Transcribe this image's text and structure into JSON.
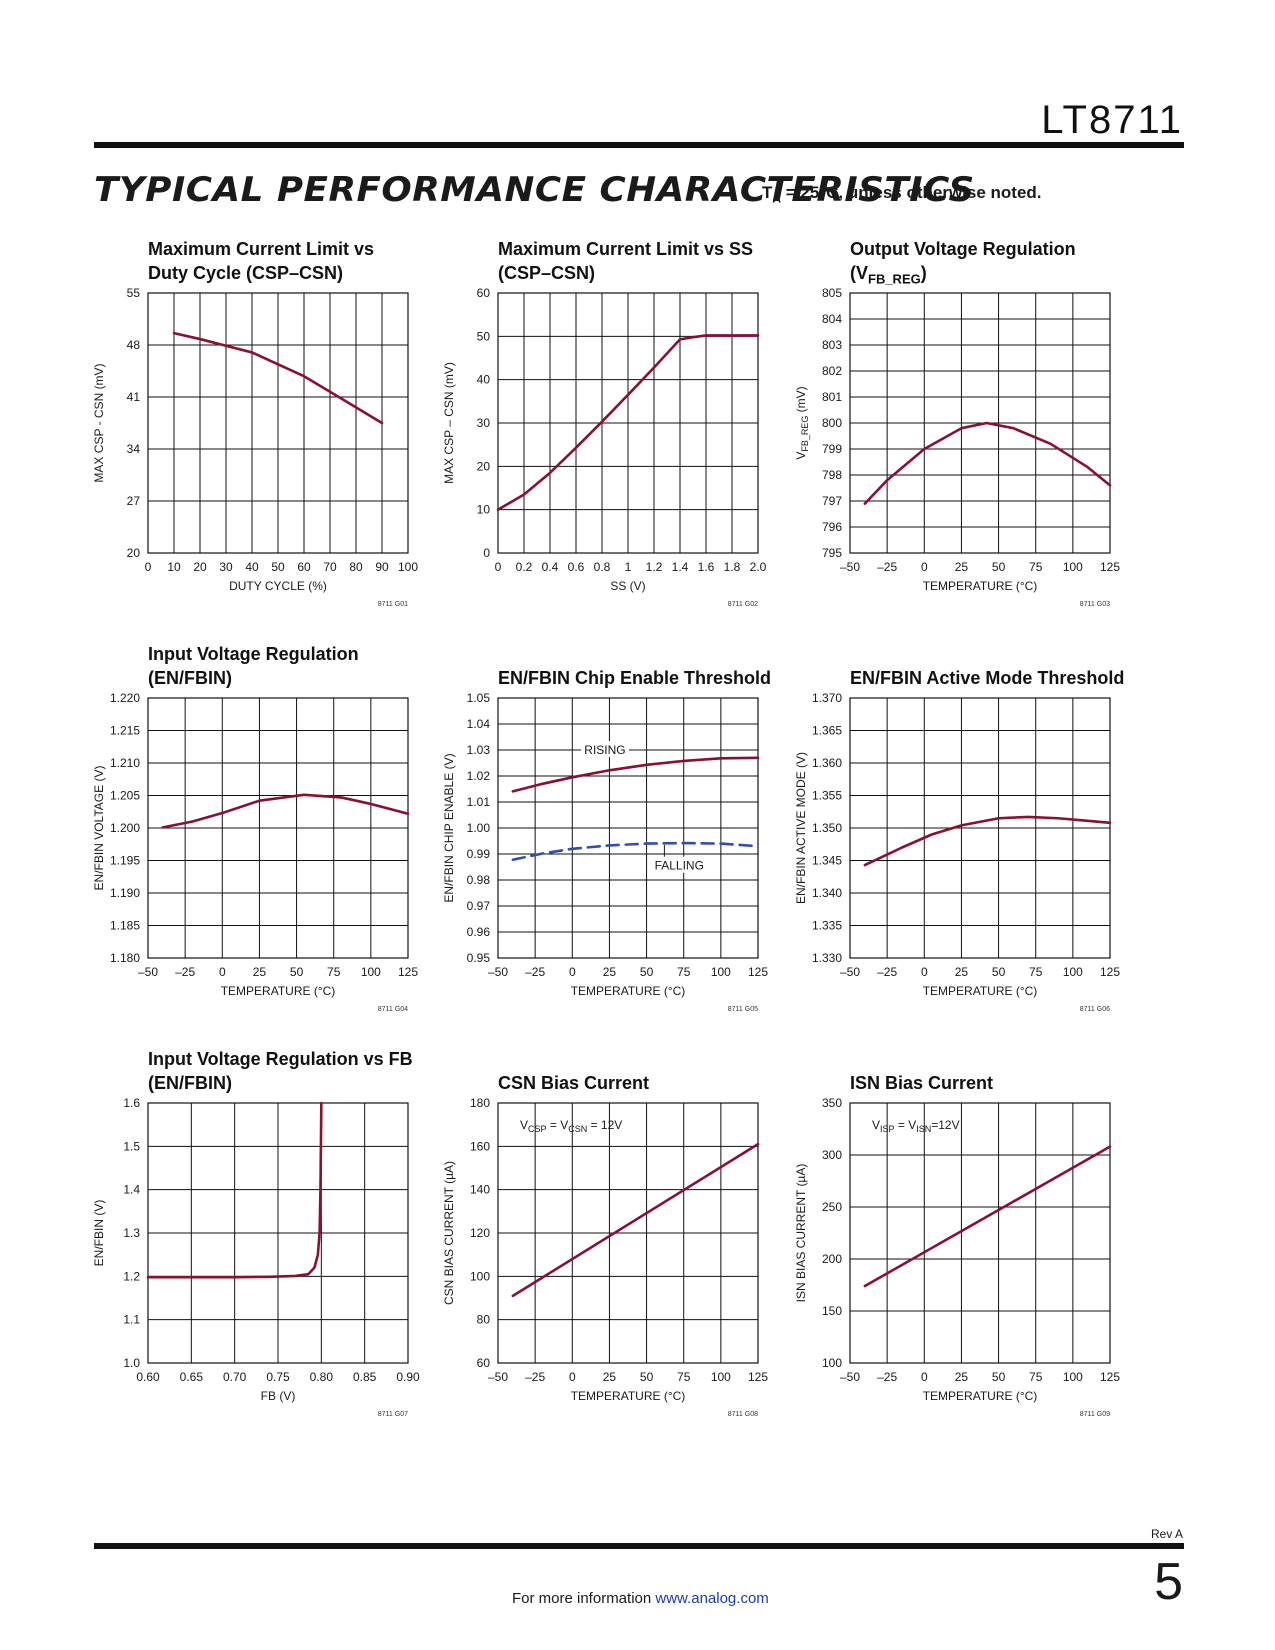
{
  "header": {
    "part_number": "LT8711",
    "section_title": "TYPICAL PERFORMANCE CHARACTERISTICS",
    "note_ta": "T",
    "note_sub": "A",
    "note_rest": " = 25°C, unless otherwise noted."
  },
  "colors": {
    "curve": "#8b1030",
    "curve_falling": "#2f4fb0",
    "grid": "#111111"
  },
  "chart_data": [
    {
      "id": "G01",
      "type": "line",
      "title_lines": [
        "Maximum Current Limit vs",
        "Duty Cycle (CSP–CSN)"
      ],
      "xlabel": "DUTY CYCLE (%)",
      "ylabel": "MAX CSP - CSN (mV)",
      "xlim": [
        0,
        100
      ],
      "ylim": [
        20,
        55
      ],
      "xticks": [
        0,
        10,
        20,
        30,
        40,
        50,
        60,
        70,
        80,
        90,
        100
      ],
      "xtick_labels": [
        "0",
        "10",
        "20",
        "30",
        "40",
        "50",
        "60",
        "70",
        "80",
        "90",
        "100"
      ],
      "yticks": [
        20,
        27,
        34,
        41,
        48,
        55
      ],
      "ytick_labels": [
        "20",
        "27",
        "34",
        "41",
        "48",
        "55"
      ],
      "code": "8711 G01",
      "series": [
        {
          "x": [
            10,
            20,
            30,
            40,
            50,
            60,
            70,
            80,
            90
          ],
          "y": [
            49.6,
            48.8,
            47.9,
            47.0,
            45.4,
            43.8,
            41.7,
            39.6,
            37.5
          ]
        }
      ]
    },
    {
      "id": "G02",
      "type": "line",
      "title_lines": [
        "Maximum Current Limit vs SS",
        "(CSP–CSN)"
      ],
      "xlabel": "SS (V)",
      "ylabel": "MAX CSP – CSN (mV)",
      "xlim": [
        0,
        2.0
      ],
      "ylim": [
        0,
        60
      ],
      "xticks": [
        0,
        0.2,
        0.4,
        0.6,
        0.8,
        1,
        1.2,
        1.4,
        1.6,
        1.8,
        2.0
      ],
      "xtick_labels": [
        "0",
        "0.2",
        "0.4",
        "0.6",
        "0.8",
        "1",
        "1.2",
        "1.4",
        "1.6",
        "1.8",
        "2.0"
      ],
      "yticks": [
        0,
        10,
        20,
        30,
        40,
        50,
        60
      ],
      "ytick_labels": [
        "0",
        "10",
        "20",
        "30",
        "40",
        "50",
        "60"
      ],
      "code": "8711 G02",
      "series": [
        {
          "x": [
            0,
            0.2,
            0.4,
            0.6,
            0.8,
            1.0,
            1.2,
            1.4,
            1.5,
            1.6,
            1.8,
            2.0
          ],
          "y": [
            10,
            13.5,
            18.5,
            24.3,
            30.3,
            36.5,
            42.8,
            49.3,
            49.8,
            50.2,
            50.2,
            50.2
          ]
        }
      ]
    },
    {
      "id": "G03",
      "type": "line",
      "title_lines": [
        "Output Voltage Regulation",
        "(V|FB_REG|)"
      ],
      "xlabel": "TEMPERATURE (°C)",
      "ylabel": "VFB_REG (mV)",
      "ylabel_main": "V",
      "ylabel_sub": "FB_REG",
      "ylabel_rest": " (mV)",
      "xlim": [
        -50,
        125
      ],
      "ylim": [
        795,
        805
      ],
      "xticks": [
        -50,
        -25,
        0,
        25,
        50,
        75,
        100,
        125
      ],
      "xtick_labels": [
        "–50",
        "–25",
        "0",
        "25",
        "50",
        "75",
        "100",
        "125"
      ],
      "yticks": [
        795,
        796,
        797,
        798,
        799,
        800,
        801,
        802,
        803,
        804,
        805
      ],
      "ytick_labels": [
        "795",
        "796",
        "797",
        "798",
        "799",
        "800",
        "801",
        "802",
        "803",
        "804",
        "805"
      ],
      "code": "8711 G03",
      "series": [
        {
          "x": [
            -40,
            -25,
            0,
            25,
            42,
            60,
            85,
            110,
            125
          ],
          "y": [
            796.9,
            797.8,
            799.0,
            799.8,
            800.0,
            799.8,
            799.2,
            798.3,
            797.6
          ]
        }
      ]
    },
    {
      "id": "G04",
      "type": "line",
      "title_lines": [
        "Input Voltage Regulation",
        "(EN/FBIN)"
      ],
      "xlabel": "TEMPERATURE (°C)",
      "ylabel": "EN/FBIN VOLTAGE (V)",
      "xlim": [
        -50,
        125
      ],
      "ylim": [
        1.18,
        1.22
      ],
      "xticks": [
        -50,
        -25,
        0,
        25,
        50,
        75,
        100,
        125
      ],
      "xtick_labels": [
        "–50",
        "–25",
        "0",
        "25",
        "50",
        "75",
        "100",
        "125"
      ],
      "yticks": [
        1.18,
        1.185,
        1.19,
        1.195,
        1.2,
        1.205,
        1.21,
        1.215,
        1.22
      ],
      "ytick_labels": [
        "1.180",
        "1.185",
        "1.190",
        "1.195",
        "1.200",
        "1.205",
        "1.210",
        "1.215",
        "1.220"
      ],
      "code": "8711 G04",
      "series": [
        {
          "x": [
            -40,
            -20,
            0,
            25,
            55,
            80,
            100,
            125
          ],
          "y": [
            1.2001,
            1.201,
            1.2023,
            1.2042,
            1.2051,
            1.2047,
            1.2037,
            1.2022
          ]
        }
      ]
    },
    {
      "id": "G05",
      "type": "line",
      "title_lines": [
        "EN/FBIN Chip Enable Threshold"
      ],
      "xlabel": "TEMPERATURE (°C)",
      "ylabel": "EN/FBIN CHIP ENABLE (V)",
      "xlim": [
        -50,
        125
      ],
      "ylim": [
        0.95,
        1.05
      ],
      "xticks": [
        -50,
        -25,
        0,
        25,
        50,
        75,
        100,
        125
      ],
      "xtick_labels": [
        "–50",
        "–25",
        "0",
        "25",
        "50",
        "75",
        "100",
        "125"
      ],
      "yticks": [
        0.95,
        0.96,
        0.97,
        0.98,
        0.99,
        1.0,
        1.01,
        1.02,
        1.03,
        1.04,
        1.05
      ],
      "ytick_labels": [
        "0.95",
        "0.96",
        "0.97",
        "0.98",
        "0.99",
        "1.00",
        "1.01",
        "1.02",
        "1.03",
        "1.04",
        "1.05"
      ],
      "code": "8711 G05",
      "annotations": [
        "RISING",
        "FALLING"
      ],
      "series": [
        {
          "name": "RISING",
          "x": [
            -40,
            -20,
            0,
            25,
            50,
            75,
            100,
            125
          ],
          "y": [
            1.0141,
            1.017,
            1.0195,
            1.0222,
            1.0243,
            1.0258,
            1.0268,
            1.027
          ]
        },
        {
          "name": "FALLING",
          "dashed": true,
          "x": [
            -40,
            -20,
            0,
            25,
            50,
            75,
            100,
            125
          ],
          "y": [
            0.9878,
            0.9902,
            0.992,
            0.9933,
            0.994,
            0.9942,
            0.994,
            0.993
          ]
        }
      ]
    },
    {
      "id": "G06",
      "type": "line",
      "title_lines": [
        "EN/FBIN Active Mode Threshold"
      ],
      "xlabel": "TEMPERATURE (°C)",
      "ylabel": "EN/FBIN ACTIVE MODE (V)",
      "xlim": [
        -50,
        125
      ],
      "ylim": [
        1.33,
        1.37
      ],
      "xticks": [
        -50,
        -25,
        0,
        25,
        50,
        75,
        100,
        125
      ],
      "xtick_labels": [
        "–50",
        "–25",
        "0",
        "25",
        "50",
        "75",
        "100",
        "125"
      ],
      "yticks": [
        1.33,
        1.335,
        1.34,
        1.345,
        1.35,
        1.355,
        1.36,
        1.365,
        1.37
      ],
      "ytick_labels": [
        "1.330",
        "1.335",
        "1.340",
        "1.345",
        "1.350",
        "1.355",
        "1.360",
        "1.365",
        "1.370"
      ],
      "code": "8711 G06",
      "series": [
        {
          "x": [
            -40,
            -15,
            5,
            25,
            50,
            70,
            90,
            110,
            125
          ],
          "y": [
            1.3443,
            1.347,
            1.349,
            1.3504,
            1.3515,
            1.3517,
            1.3515,
            1.3511,
            1.3508
          ]
        }
      ]
    },
    {
      "id": "G07",
      "type": "line",
      "title_lines": [
        "Input Voltage Regulation vs FB",
        "(EN/FBIN)"
      ],
      "xlabel": "FB (V)",
      "ylabel": "EN/FBIN (V)",
      "xlim": [
        0.6,
        0.9
      ],
      "ylim": [
        1.0,
        1.6
      ],
      "xticks": [
        0.6,
        0.65,
        0.7,
        0.75,
        0.8,
        0.85,
        0.9
      ],
      "xtick_labels": [
        "0.60",
        "0.65",
        "0.70",
        "0.75",
        "0.80",
        "0.85",
        "0.90"
      ],
      "yticks": [
        1.0,
        1.1,
        1.2,
        1.3,
        1.4,
        1.5,
        1.6
      ],
      "ytick_labels": [
        "1.0",
        "1.1",
        "1.2",
        "1.3",
        "1.4",
        "1.5",
        "1.6"
      ],
      "code": "8711 G07",
      "series": [
        {
          "x": [
            0.6,
            0.65,
            0.7,
            0.74,
            0.77,
            0.785,
            0.792,
            0.796,
            0.798,
            0.799,
            0.7995,
            0.8
          ],
          "y": [
            1.198,
            1.198,
            1.198,
            1.199,
            1.201,
            1.205,
            1.22,
            1.25,
            1.3,
            1.4,
            1.5,
            1.6
          ]
        }
      ]
    },
    {
      "id": "G08",
      "type": "line",
      "title_lines": [
        "CSN Bias Current"
      ],
      "xlabel": "TEMPERATURE (°C)",
      "ylabel": "CSN BIAS CURRENT (µA)",
      "xlim": [
        -50,
        125
      ],
      "ylim": [
        60,
        180
      ],
      "xticks": [
        -50,
        -25,
        0,
        25,
        50,
        75,
        100,
        125
      ],
      "xtick_labels": [
        "–50",
        "–25",
        "0",
        "25",
        "50",
        "75",
        "100",
        "125"
      ],
      "yticks": [
        60,
        80,
        100,
        120,
        140,
        160,
        180
      ],
      "ytick_labels": [
        "60",
        "80",
        "100",
        "120",
        "140",
        "160",
        "180"
      ],
      "code": "8711 G08",
      "condition_parts": [
        "V",
        "CSP",
        " = V",
        "CSN",
        " = 12V"
      ],
      "series": [
        {
          "x": [
            -40,
            125
          ],
          "y": [
            91,
            161
          ]
        }
      ]
    },
    {
      "id": "G09",
      "type": "line",
      "title_lines": [
        "ISN Bias Current"
      ],
      "xlabel": "TEMPERATURE (°C)",
      "ylabel": "ISN BIAS CURRENT (µA)",
      "xlim": [
        -50,
        125
      ],
      "ylim": [
        100,
        350
      ],
      "xticks": [
        -50,
        -25,
        0,
        25,
        50,
        75,
        100,
        125
      ],
      "xtick_labels": [
        "–50",
        "–25",
        "0",
        "25",
        "50",
        "75",
        "100",
        "125"
      ],
      "yticks": [
        100,
        150,
        200,
        250,
        300,
        350
      ],
      "ytick_labels": [
        "100",
        "150",
        "200",
        "250",
        "300",
        "350"
      ],
      "code": "8711 G09",
      "condition_parts": [
        "V",
        "ISP",
        " = V",
        "ISN",
        "=12V"
      ],
      "series": [
        {
          "x": [
            -40,
            125
          ],
          "y": [
            174,
            308
          ]
        }
      ]
    }
  ],
  "footer": {
    "revision": "Rev A",
    "info_text": "For more information ",
    "link_text": "www.analog.com",
    "page_number": "5"
  }
}
